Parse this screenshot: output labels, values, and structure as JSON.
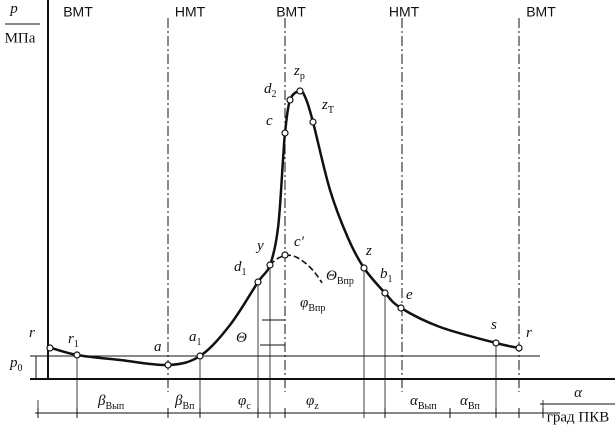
{
  "axes": {
    "y_symbol": "p",
    "y_unit": "МПа",
    "x_symbol": "α",
    "x_unit": "град ПКВ",
    "p0_symbol": "p",
    "p0_sub": "0"
  },
  "dead_centers": [
    "ВМТ",
    "НМТ",
    "ВМТ",
    "НМТ",
    "ВМТ"
  ],
  "points": [
    {
      "label": "r"
    },
    {
      "label": "r",
      "sub": "1"
    },
    {
      "label": "a"
    },
    {
      "label": "a",
      "sub": "1"
    },
    {
      "label": "d",
      "sub": "1"
    },
    {
      "label": "y"
    },
    {
      "label": "c'"
    },
    {
      "label": "c"
    },
    {
      "label": "d",
      "sub": "2"
    },
    {
      "label": "z",
      "sub": "p"
    },
    {
      "label": "z",
      "sub": "T"
    },
    {
      "label": "z"
    },
    {
      "label": "b",
      "sub": "1"
    },
    {
      "label": "e"
    },
    {
      "label": "s"
    },
    {
      "label": "r"
    }
  ],
  "angles": [
    {
      "symbol": "Θ"
    },
    {
      "symbol": "φ",
      "sub": "Впр"
    },
    {
      "symbol": "Θ",
      "sub": "Впр"
    }
  ],
  "intervals": [
    {
      "symbol": "β",
      "sub": "Вып"
    },
    {
      "symbol": "β",
      "sub": "Вп"
    },
    {
      "symbol": "φ",
      "sub": "c"
    },
    {
      "symbol": "φ",
      "sub": "z"
    },
    {
      "symbol": "α",
      "sub": "Вып"
    },
    {
      "symbol": "α",
      "sub": "Вп"
    }
  ]
}
